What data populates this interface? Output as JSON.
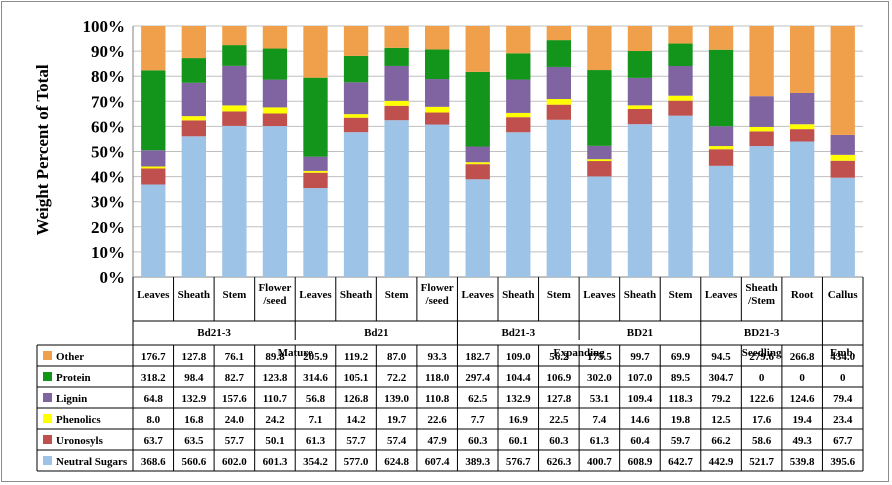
{
  "chart_data": {
    "type": "bar",
    "stacked": "percent",
    "ylabel": "Weight Percent of Total",
    "ylim": [
      0,
      100
    ],
    "yticks": [
      "0%",
      "10%",
      "20%",
      "30%",
      "40%",
      "50%",
      "60%",
      "70%",
      "80%",
      "90%",
      "100%"
    ],
    "grid": true,
    "categories": [
      "Leaves",
      "Sheath",
      "Stem",
      "Flower /seed",
      "Leaves",
      "Sheath",
      "Stem",
      "Flower /seed",
      "Leaves",
      "Sheath",
      "Stem",
      "Leaves",
      "Sheath",
      "Stem",
      "Leaves",
      "Sheath /Stem",
      "Root",
      "Callus"
    ],
    "category_lines": [
      [
        "Leaves"
      ],
      [
        "Sheath"
      ],
      [
        "Stem"
      ],
      [
        "Flower",
        "/seed"
      ],
      [
        "Leaves"
      ],
      [
        "Sheath"
      ],
      [
        "Stem"
      ],
      [
        "Flower",
        "/seed"
      ],
      [
        "Leaves"
      ],
      [
        "Sheath"
      ],
      [
        "Stem"
      ],
      [
        "Leaves"
      ],
      [
        "Sheath"
      ],
      [
        "Stem"
      ],
      [
        "Leaves"
      ],
      [
        "Sheath",
        "/Stem"
      ],
      [
        "Root"
      ],
      [
        "Callus"
      ]
    ],
    "genotype_labels": [
      {
        "label": "Bd21-3",
        "span": [
          0,
          3
        ]
      },
      {
        "label": "Bd21",
        "span": [
          4,
          7
        ]
      },
      {
        "label": "Bd21-3",
        "span": [
          8,
          10
        ]
      },
      {
        "label": "BD21",
        "span": [
          11,
          13
        ]
      },
      {
        "label": "BD21-3",
        "span": [
          14,
          16
        ]
      },
      {
        "label": "",
        "span": [
          17,
          17
        ]
      }
    ],
    "stage_labels": [
      {
        "label": "Mature",
        "span": [
          0,
          7
        ]
      },
      {
        "label": "Expanding",
        "span": [
          8,
          13
        ]
      },
      {
        "label": "Seedling",
        "span": [
          14,
          16
        ]
      },
      {
        "label": "Emb.",
        "span": [
          17,
          17
        ]
      }
    ],
    "series": [
      {
        "name": "Neutral Sugars",
        "color": "#9dc3e6",
        "values": [
          368.6,
          560.6,
          602.0,
          601.3,
          354.2,
          577.0,
          624.8,
          607.4,
          389.3,
          576.7,
          626.3,
          400.7,
          608.9,
          642.7,
          442.9,
          521.7,
          539.8,
          395.6
        ]
      },
      {
        "name": "Uronosyls",
        "color": "#c0504d",
        "values": [
          63.7,
          63.5,
          57.7,
          50.1,
          61.3,
          57.7,
          57.4,
          47.9,
          60.3,
          60.1,
          60.3,
          61.3,
          60.4,
          59.7,
          66.2,
          58.6,
          49.3,
          67.7
        ]
      },
      {
        "name": "Phenolics",
        "color": "#ffff00",
        "values": [
          8.0,
          16.8,
          24.0,
          24.2,
          7.1,
          14.2,
          19.7,
          22.6,
          7.7,
          16.9,
          22.5,
          7.4,
          14.6,
          19.8,
          12.5,
          17.6,
          19.4,
          23.4
        ]
      },
      {
        "name": "Lignin",
        "color": "#8064a2",
        "values": [
          64.8,
          132.9,
          157.6,
          110.7,
          56.8,
          126.8,
          139.0,
          110.8,
          62.5,
          132.9,
          127.8,
          53.1,
          109.4,
          118.3,
          79.2,
          122.6,
          124.6,
          79.4
        ]
      },
      {
        "name": "Protein",
        "color": "#13941a",
        "values": [
          318.2,
          98.4,
          82.7,
          123.8,
          314.6,
          105.1,
          72.2,
          118.0,
          297.4,
          104.4,
          106.9,
          302.0,
          107.0,
          89.5,
          304.7,
          0,
          0,
          0
        ]
      },
      {
        "name": "Other",
        "color": "#f0a04b",
        "values": [
          176.7,
          127.8,
          76.1,
          89.8,
          205.9,
          119.2,
          87.0,
          93.3,
          182.7,
          109.0,
          56.2,
          175.5,
          99.7,
          69.9,
          94.5,
          279.6,
          266.8,
          434.0
        ]
      }
    ],
    "table_display": {
      "Other": [
        "176.7",
        "127.8",
        "76.1",
        "89.8",
        "205.9",
        "119.2",
        "87.0",
        "93.3",
        "182.7",
        "109.0",
        "56.2",
        "175.5",
        "99.7",
        "69.9",
        "94.5",
        "279.6",
        "266.8",
        "434.0"
      ],
      "Protein": [
        "318.2",
        "98.4",
        "82.7",
        "123.8",
        "314.6",
        "105.1",
        "72.2",
        "118.0",
        "297.4",
        "104.4",
        "106.9",
        "302.0",
        "107.0",
        "89.5",
        "304.7",
        "0",
        "0",
        "0"
      ],
      "Lignin": [
        "64.8",
        "132.9",
        "157.6",
        "110.7",
        "56.8",
        "126.8",
        "139.0",
        "110.8",
        "62.5",
        "132.9",
        "127.8",
        "53.1",
        "109.4",
        "118.3",
        "79.2",
        "122.6",
        "124.6",
        "79.4"
      ],
      "Phenolics": [
        "8.0",
        "16.8",
        "24.0",
        "24.2",
        "7.1",
        "14.2",
        "19.7",
        "22.6",
        "7.7",
        "16.9",
        "22.5",
        "7.4",
        "14.6",
        "19.8",
        "12.5",
        "17.6",
        "19.4",
        "23.4"
      ],
      "Uronosyls": [
        "63.7",
        "63.5",
        "57.7",
        "50.1",
        "61.3",
        "57.7",
        "57.4",
        "47.9",
        "60.3",
        "60.1",
        "60.3",
        "61.3",
        "60.4",
        "59.7",
        "66.2",
        "58.6",
        "49.3",
        "67.7"
      ],
      "Neutral Sugars": [
        "368.6",
        "560.6",
        "602.0",
        "601.3",
        "354.2",
        "577.0",
        "624.8",
        "607.4",
        "389.3",
        "576.7",
        "626.3",
        "400.7",
        "608.9",
        "642.7",
        "442.9",
        "521.7",
        "539.8",
        "395.6"
      ]
    },
    "table_row_order": [
      "Other",
      "Protein",
      "Lignin",
      "Phenolics",
      "Uronosyls",
      "Neutral Sugars"
    ]
  }
}
